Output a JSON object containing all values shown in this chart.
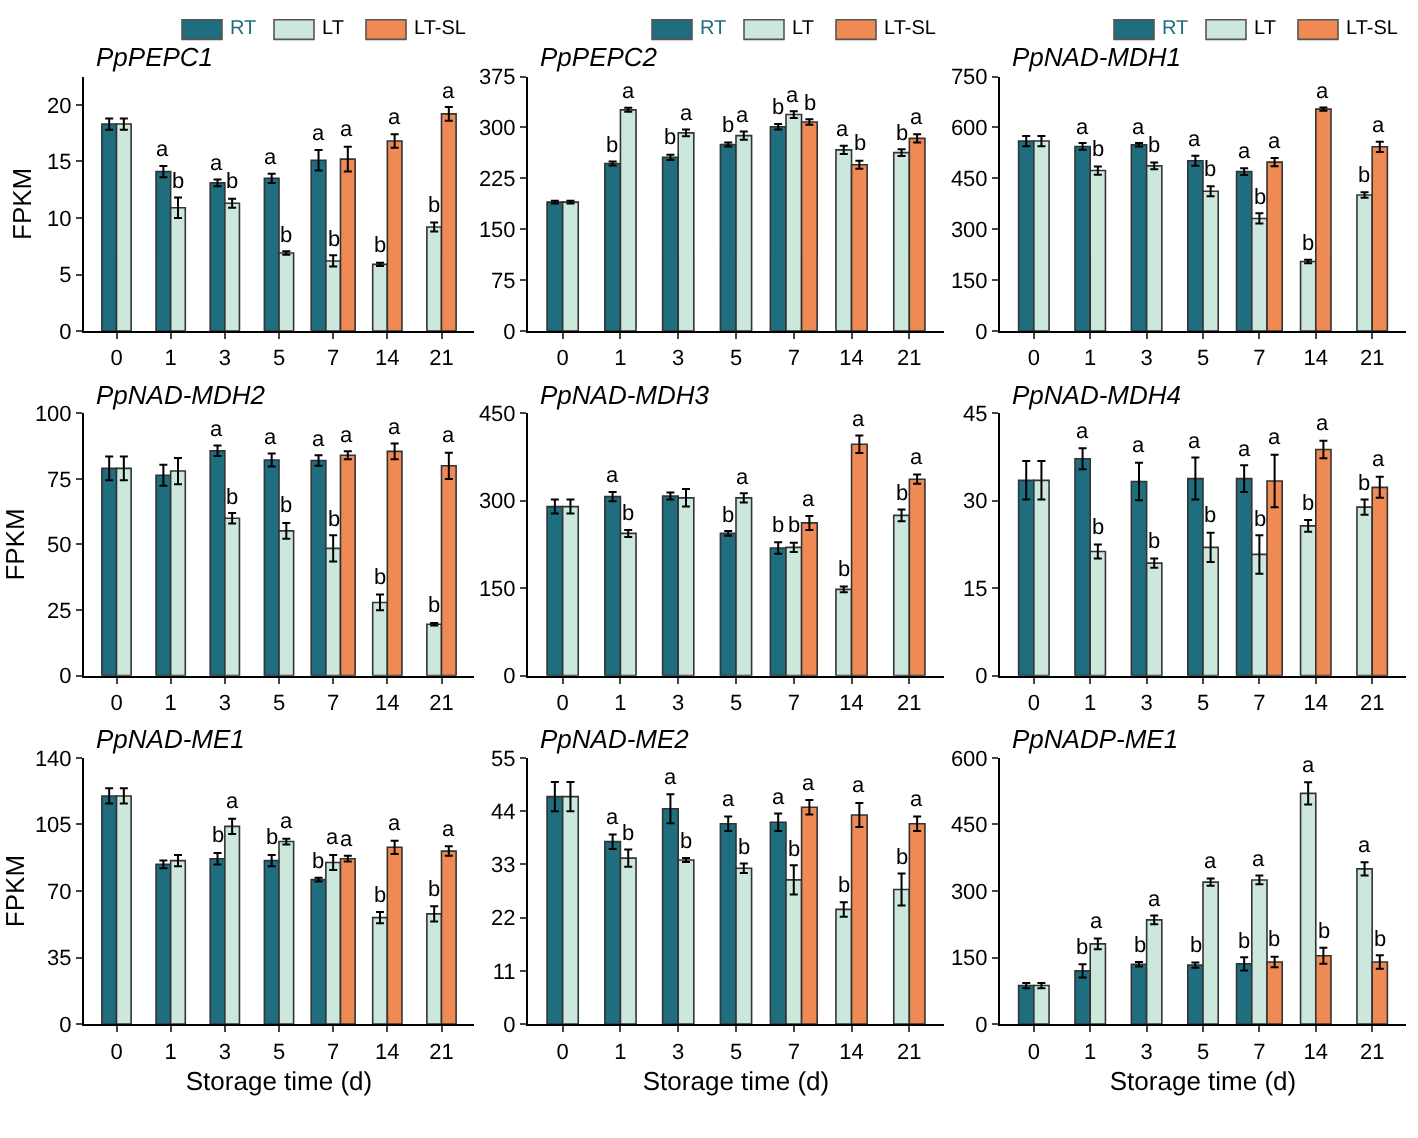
{
  "chart_data": [
    {
      "type": "bar",
      "title": "PpPEPC1",
      "ylabel": "FPKM",
      "categories": [
        "0",
        "1",
        "3",
        "5",
        "7",
        "14",
        "21"
      ],
      "ylim": [
        0,
        22.5
      ],
      "yticks": [
        0,
        5,
        10,
        15,
        20
      ],
      "legend": "top right",
      "series": [
        {
          "name": "RT",
          "color": "#1f6e80",
          "values": [
            18.3,
            14.1,
            13.1,
            13.5,
            15.1,
            null,
            null
          ],
          "errors": [
            0.5,
            0.5,
            0.3,
            0.4,
            0.9,
            null,
            null
          ],
          "value_labels": [
            null,
            "a",
            "a",
            "a",
            "a",
            null,
            null
          ]
        },
        {
          "name": "LT",
          "color": "#cce8dc",
          "values": [
            18.3,
            10.9,
            11.3,
            6.9,
            6.2,
            5.9,
            9.2
          ],
          "errors": [
            0.5,
            0.9,
            0.4,
            0.15,
            0.5,
            0.15,
            0.4
          ],
          "value_labels": [
            null,
            "b",
            "b",
            "b",
            "b",
            "b",
            "b"
          ]
        },
        {
          "name": "LT-SL",
          "color": "#ef8a55",
          "values": [
            null,
            null,
            null,
            null,
            15.2,
            16.8,
            19.2
          ],
          "errors": [
            null,
            null,
            null,
            null,
            1.1,
            0.6,
            0.6
          ],
          "value_labels": [
            null,
            null,
            null,
            null,
            "a",
            "a",
            "a"
          ]
        }
      ]
    },
    {
      "type": "bar",
      "title": "PpPEPC2",
      "categories": [
        "0",
        "1",
        "3",
        "5",
        "7",
        "14",
        "21"
      ],
      "ylim": [
        0,
        375
      ],
      "yticks": [
        0,
        75,
        150,
        225,
        300,
        375
      ],
      "legend": "top right",
      "series": [
        {
          "name": "RT",
          "color": "#1f6e80",
          "values": [
            190,
            247,
            256,
            275,
            301,
            null,
            null
          ],
          "errors": [
            2,
            3,
            4,
            3,
            4,
            null,
            null
          ],
          "value_labels": [
            null,
            "b",
            "b",
            "b",
            "b",
            null,
            null
          ]
        },
        {
          "name": "LT",
          "color": "#cce8dc",
          "values": [
            190,
            326,
            292,
            288,
            319,
            267,
            263
          ],
          "errors": [
            2,
            3,
            5,
            6,
            5,
            6,
            5
          ],
          "value_labels": [
            null,
            "a",
            "a",
            "a",
            "a",
            "a",
            "b"
          ]
        },
        {
          "name": "LT-SL",
          "color": "#ef8a55",
          "values": [
            null,
            null,
            null,
            null,
            308,
            245,
            284
          ],
          "errors": [
            null,
            null,
            null,
            null,
            4,
            6,
            6
          ],
          "value_labels": [
            null,
            null,
            null,
            null,
            "b",
            "b",
            "a"
          ]
        }
      ]
    },
    {
      "type": "bar",
      "title": "PpNAD-MDH1",
      "categories": [
        "0",
        "1",
        "3",
        "5",
        "7",
        "14",
        "21"
      ],
      "ylim": [
        0,
        750
      ],
      "yticks": [
        0,
        150,
        300,
        450,
        600,
        750
      ],
      "legend": "top right",
      "series": [
        {
          "name": "RT",
          "color": "#1f6e80",
          "values": [
            560,
            544,
            549,
            502,
            470,
            null,
            null
          ],
          "errors": [
            15,
            10,
            5,
            15,
            10,
            null,
            null
          ],
          "value_labels": [
            null,
            "a",
            "a",
            "a",
            "a",
            null,
            null
          ]
        },
        {
          "name": "LT",
          "color": "#cce8dc",
          "values": [
            560,
            473,
            487,
            412,
            332,
            205,
            401
          ],
          "errors": [
            15,
            12,
            10,
            15,
            15,
            5,
            8
          ],
          "value_labels": [
            null,
            "b",
            "b",
            "b",
            "b",
            "b",
            "b"
          ]
        },
        {
          "name": "LT-SL",
          "color": "#ef8a55",
          "values": [
            null,
            null,
            null,
            null,
            498,
            654,
            543
          ],
          "errors": [
            null,
            null,
            null,
            null,
            12,
            5,
            15
          ],
          "value_labels": [
            null,
            null,
            null,
            null,
            "a",
            "a",
            "a"
          ]
        }
      ]
    },
    {
      "type": "bar",
      "title": "PpNAD-MDH2",
      "ylabel": "FPKM",
      "categories": [
        "0",
        "1",
        "3",
        "5",
        "7",
        "14",
        "21"
      ],
      "ylim": [
        0,
        100
      ],
      "yticks": [
        0,
        25,
        50,
        75,
        100
      ],
      "series": [
        {
          "color": "#1f6e80",
          "values": [
            79,
            76.4,
            85.7,
            82.2,
            82,
            null,
            null
          ],
          "errors": [
            4.5,
            4,
            2,
            2.5,
            2,
            null,
            null
          ],
          "value_labels": [
            null,
            null,
            "a",
            "a",
            "a",
            null,
            null
          ]
        },
        {
          "color": "#cce8dc",
          "values": [
            79,
            78,
            60,
            55.2,
            48.5,
            27.9,
            19.6
          ],
          "errors": [
            4.5,
            5,
            2,
            3,
            5,
            3,
            0.5
          ],
          "value_labels": [
            null,
            null,
            "b",
            "b",
            "b",
            "b",
            "b"
          ]
        },
        {
          "color": "#ef8a55",
          "values": [
            null,
            null,
            null,
            null,
            84,
            85.5,
            80
          ],
          "errors": [
            null,
            null,
            null,
            null,
            1.5,
            3,
            5
          ],
          "value_labels": [
            null,
            null,
            null,
            null,
            "a",
            "a",
            "a"
          ]
        }
      ]
    },
    {
      "type": "bar",
      "title": "PpNAD-MDH3",
      "categories": [
        "0",
        "1",
        "3",
        "5",
        "7",
        "14",
        "21"
      ],
      "ylim": [
        0,
        450
      ],
      "yticks": [
        0,
        150,
        300,
        450
      ],
      "series": [
        {
          "color": "#1f6e80",
          "values": [
            290,
            307,
            308,
            244,
            219,
            null,
            null
          ],
          "errors": [
            12,
            8,
            6,
            4,
            10,
            null,
            null
          ],
          "value_labels": [
            null,
            "a",
            null,
            "b",
            "b",
            null,
            null
          ]
        },
        {
          "color": "#cce8dc",
          "values": [
            290,
            244,
            305,
            305,
            220,
            148,
            275
          ],
          "errors": [
            12,
            6,
            15,
            8,
            8,
            5,
            10
          ],
          "value_labels": [
            null,
            "b",
            null,
            "a",
            "b",
            "b",
            "b"
          ]
        },
        {
          "color": "#ef8a55",
          "values": [
            null,
            null,
            null,
            null,
            262,
            397,
            337
          ],
          "errors": [
            null,
            null,
            null,
            null,
            12,
            15,
            8
          ],
          "value_labels": [
            null,
            null,
            null,
            null,
            "a",
            "a",
            "a"
          ]
        }
      ]
    },
    {
      "type": "bar",
      "title": "PpNAD-MDH4",
      "categories": [
        "0",
        "1",
        "3",
        "5",
        "7",
        "14",
        "21"
      ],
      "ylim": [
        0,
        45
      ],
      "yticks": [
        0,
        15,
        30,
        45
      ],
      "series": [
        {
          "color": "#1f6e80",
          "values": [
            33.5,
            37.2,
            33.3,
            33.8,
            33.8,
            null,
            null
          ],
          "errors": [
            3.3,
            1.8,
            3.2,
            3.6,
            2.3,
            null,
            null
          ],
          "value_labels": [
            null,
            "a",
            "a",
            "a",
            "a",
            null,
            null
          ]
        },
        {
          "color": "#cce8dc",
          "values": [
            33.5,
            21.3,
            19.3,
            22,
            20.8,
            25.7,
            28.9
          ],
          "errors": [
            3.3,
            1.2,
            0.8,
            2.5,
            3.3,
            1,
            1.3
          ],
          "value_labels": [
            null,
            "b",
            "b",
            "b",
            "b",
            "b",
            "b"
          ]
        },
        {
          "color": "#ef8a55",
          "values": [
            null,
            null,
            null,
            null,
            33.4,
            38.8,
            32.3
          ],
          "errors": [
            null,
            null,
            null,
            null,
            4.5,
            1.5,
            1.8
          ],
          "value_labels": [
            null,
            null,
            null,
            null,
            "a",
            "a",
            "a"
          ]
        }
      ]
    },
    {
      "type": "bar",
      "title": "PpNAD-ME1",
      "ylabel": "FPKM",
      "xlabel": "Storage time (d)",
      "categories": [
        "0",
        "1",
        "3",
        "5",
        "7",
        "14",
        "21"
      ],
      "ylim": [
        0,
        140
      ],
      "yticks": [
        0,
        35,
        70,
        105,
        140
      ],
      "series": [
        {
          "color": "#1f6e80",
          "values": [
            120,
            84,
            87,
            86,
            76,
            null,
            null
          ],
          "errors": [
            4,
            2,
            3,
            3,
            1,
            null,
            null
          ],
          "value_labels": [
            null,
            null,
            "b",
            "b",
            "b",
            null,
            null
          ]
        },
        {
          "color": "#cce8dc",
          "values": [
            120,
            86,
            104,
            96,
            85,
            56,
            58
          ],
          "errors": [
            4,
            3,
            4,
            1.5,
            4,
            3,
            4
          ],
          "value_labels": [
            null,
            null,
            "a",
            "a",
            "a",
            "b",
            "b"
          ]
        },
        {
          "color": "#ef8a55",
          "values": [
            null,
            null,
            null,
            null,
            87,
            93,
            91
          ],
          "errors": [
            null,
            null,
            null,
            null,
            1.5,
            3.5,
            2.5
          ],
          "value_labels": [
            null,
            null,
            null,
            null,
            "a",
            "a",
            "a"
          ]
        }
      ]
    },
    {
      "type": "bar",
      "title": "PpNAD-ME2",
      "xlabel": "Storage time (d)",
      "categories": [
        "0",
        "1",
        "3",
        "5",
        "7",
        "14",
        "21"
      ],
      "ylim": [
        0,
        55
      ],
      "yticks": [
        0,
        11,
        22,
        33,
        44,
        55
      ],
      "series": [
        {
          "color": "#1f6e80",
          "values": [
            47,
            37.7,
            44.5,
            41.4,
            41.7,
            null,
            null
          ],
          "errors": [
            3,
            1.5,
            3,
            1.5,
            1.8,
            null,
            null
          ],
          "value_labels": [
            null,
            "a",
            "a",
            "a",
            "a",
            null,
            null
          ]
        },
        {
          "color": "#cce8dc",
          "values": [
            47,
            34.3,
            33.9,
            32.2,
            29.8,
            23.7,
            27.8
          ],
          "errors": [
            3,
            1.8,
            0.4,
            1,
            3,
            1.5,
            3.3
          ],
          "value_labels": [
            null,
            "b",
            "b",
            "b",
            "b",
            "b",
            "b"
          ]
        },
        {
          "color": "#ef8a55",
          "values": [
            null,
            null,
            null,
            null,
            44.8,
            43.2,
            41.4
          ],
          "errors": [
            null,
            null,
            null,
            null,
            1.5,
            2.5,
            1.5
          ],
          "value_labels": [
            null,
            null,
            null,
            null,
            "a",
            "a",
            "a"
          ]
        }
      ]
    },
    {
      "type": "bar",
      "title": "PpNADP-ME1",
      "xlabel": "Storage time (d)",
      "categories": [
        "0",
        "1",
        "3",
        "5",
        "7",
        "14",
        "21"
      ],
      "ylim": [
        0,
        600
      ],
      "yticks": [
        0,
        150,
        300,
        450,
        600
      ],
      "series": [
        {
          "color": "#1f6e80",
          "values": [
            87,
            120,
            135,
            133,
            136,
            null,
            null
          ],
          "errors": [
            6,
            15,
            5,
            6,
            15,
            null,
            null
          ],
          "value_labels": [
            null,
            "b",
            "b",
            "b",
            "b",
            null,
            null
          ]
        },
        {
          "color": "#cce8dc",
          "values": [
            87,
            181,
            235,
            320,
            325,
            520,
            350
          ],
          "errors": [
            6,
            12,
            10,
            8,
            10,
            25,
            15
          ],
          "value_labels": [
            null,
            "a",
            "a",
            "a",
            "a",
            "a",
            "a"
          ]
        },
        {
          "color": "#ef8a55",
          "values": [
            null,
            null,
            null,
            null,
            140,
            154,
            140
          ],
          "errors": [
            null,
            null,
            null,
            null,
            12,
            18,
            15
          ],
          "value_labels": [
            null,
            null,
            null,
            null,
            "b",
            "b",
            "b"
          ]
        }
      ]
    }
  ]
}
